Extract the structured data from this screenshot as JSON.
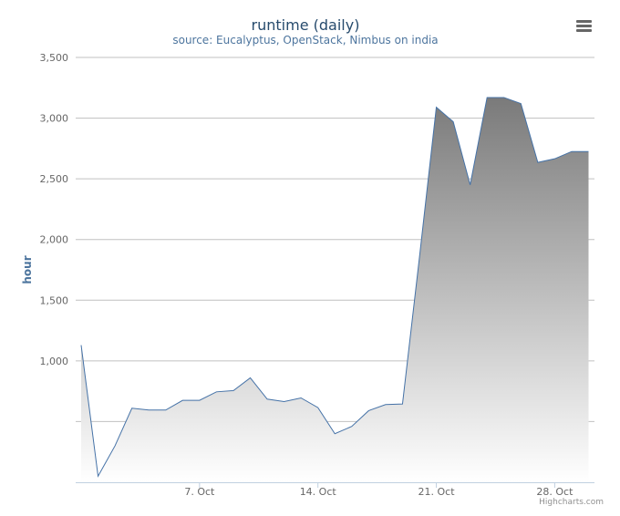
{
  "chart_data": {
    "type": "area",
    "title": "runtime (daily)",
    "subtitle": "source: Eucalyptus, OpenStack, Nimbus on india",
    "xlabel": "",
    "ylabel": "hour",
    "x_start": "Sep 30",
    "x_ticks": [
      "7. Oct",
      "14. Oct",
      "21. Oct",
      "28. Oct"
    ],
    "y_ticks": [
      "",
      "1,000",
      "1,500",
      "2,000",
      "2,500",
      "3,000",
      "3,500"
    ],
    "ylim": [
      0,
      3500
    ],
    "y_tick_values": [
      500,
      1000,
      1500,
      2000,
      2500,
      3000,
      3500
    ],
    "x_dates": [
      "Sep 30",
      "Oct 1",
      "Oct 2",
      "Oct 3",
      "Oct 4",
      "Oct 5",
      "Oct 6",
      "Oct 7",
      "Oct 8",
      "Oct 9",
      "Oct 10",
      "Oct 11",
      "Oct 12",
      "Oct 13",
      "Oct 14",
      "Oct 15",
      "Oct 16",
      "Oct 17",
      "Oct 18",
      "Oct 19",
      "Oct 20",
      "Oct 21",
      "Oct 22",
      "Oct 23",
      "Oct 24",
      "Oct 25",
      "Oct 26",
      "Oct 27",
      "Oct 28",
      "Oct 29",
      "Oct 30"
    ],
    "values": [
      1130,
      50,
      300,
      610,
      595,
      595,
      675,
      675,
      745,
      755,
      860,
      685,
      665,
      695,
      615,
      400,
      460,
      590,
      640,
      645,
      1850,
      3090,
      2970,
      2450,
      3170,
      3170,
      3120,
      2635,
      2665,
      2725,
      2725
    ],
    "grid": true,
    "legend": "none",
    "series_color": "#4572a7"
  },
  "credits": "Highcharts.com",
  "menu_icon": "hamburger-menu-icon"
}
